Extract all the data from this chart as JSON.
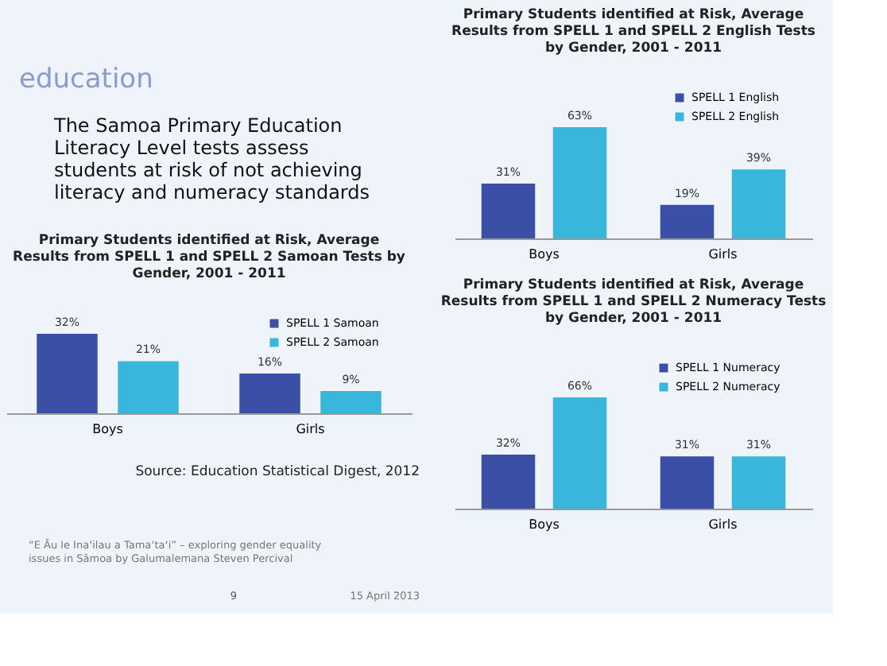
{
  "chart_data": [
    {
      "type": "other",
      "title": "education",
      "annotations": [
        "The Samoa Primary Education Literacy Level tests assess students at risk of not achieving literacy and numeracy standards"
      ]
    },
    {
      "type": "bar",
      "title": "Primary Students identified at Risk, Average Results from SPELL 1 and SPELL 2 English Tests by Gender, 2001 - 2011",
      "categories": [
        "Boys",
        "Girls"
      ],
      "legend": "top right",
      "series": [
        {
          "name": "SPELL 1 English",
          "color": "#3b4fa6",
          "values": [
            31,
            19
          ],
          "value_labels": [
            "31%",
            "19%"
          ]
        },
        {
          "name": "SPELL 2 English",
          "color": "#39b6db",
          "values": [
            63,
            39
          ],
          "value_labels": [
            "63%",
            "39%"
          ]
        }
      ]
    },
    {
      "type": "bar",
      "title": "Primary Students identified at Risk, Average Results from SPELL 1 and SPELL 2 Samoan Tests by Gender, 2001 - 2011",
      "categories": [
        "Boys",
        "Girls"
      ],
      "legend": "top right",
      "series": [
        {
          "name": "SPELL 1 Samoan",
          "color": "#3b4fa6",
          "values": [
            32,
            16
          ],
          "value_labels": [
            "32%",
            "16%"
          ]
        },
        {
          "name": "SPELL 2 Samoan",
          "color": "#39b6db",
          "values": [
            21,
            9
          ],
          "value_labels": [
            "21%",
            "9%"
          ]
        }
      ]
    },
    {
      "type": "bar",
      "title": "Primary Students identified at Risk, Average Results from SPELL 1 and SPELL 2 Numeracy Tests by Gender, 2001 - 2011",
      "categories": [
        "Boys",
        "Girls"
      ],
      "legend": "top right",
      "series": [
        {
          "name": "SPELL 1 Numeracy",
          "color": "#3b4fa6",
          "values": [
            32,
            31
          ],
          "value_labels": [
            "32%",
            "31%"
          ]
        },
        {
          "name": "SPELL 2 Numeracy",
          "color": "#39b6db",
          "values": [
            66,
            31
          ],
          "value_labels": [
            "66%",
            "31%"
          ]
        }
      ]
    },
    {
      "type": "other",
      "annotations": [
        "Source: Education Statistical Digest, 2012",
        "“E Āu le Ina‘ilau a Tama‘ta‘i” – exploring gender equality issues in Sāmoa by Galumalemana Steven Percival",
        "9",
        "15 April 2013"
      ]
    }
  ]
}
